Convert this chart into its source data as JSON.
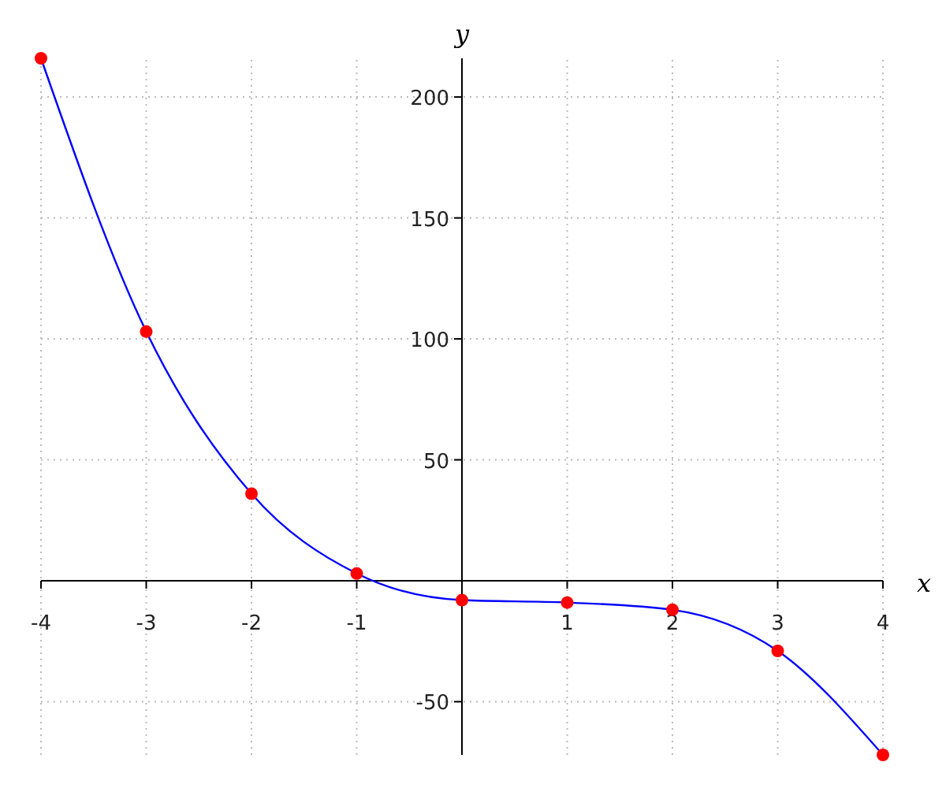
{
  "chart_data": {
    "type": "line",
    "xlabel": "x",
    "ylabel": "y",
    "x": [
      -4,
      -3,
      -2,
      -1,
      0,
      1,
      2,
      3,
      4
    ],
    "series": [
      {
        "color": "#0000ff",
        "marker": "none",
        "values": [
          216,
          103,
          36,
          3,
          -8,
          -9,
          -12,
          -29,
          -72
        ]
      },
      {
        "type": "scatter",
        "color": "#ff0000",
        "marker": "circle",
        "values": [
          216,
          103,
          36,
          3,
          -8,
          -9,
          -12,
          -29,
          -72
        ]
      }
    ],
    "xlim": [
      -4,
      4
    ],
    "ylim": [
      -72,
      216
    ],
    "xticks": [
      -4,
      -3,
      -2,
      -1,
      1,
      2,
      3,
      4
    ],
    "yticks": [
      -50,
      50,
      100,
      150,
      200
    ],
    "grid": true
  }
}
